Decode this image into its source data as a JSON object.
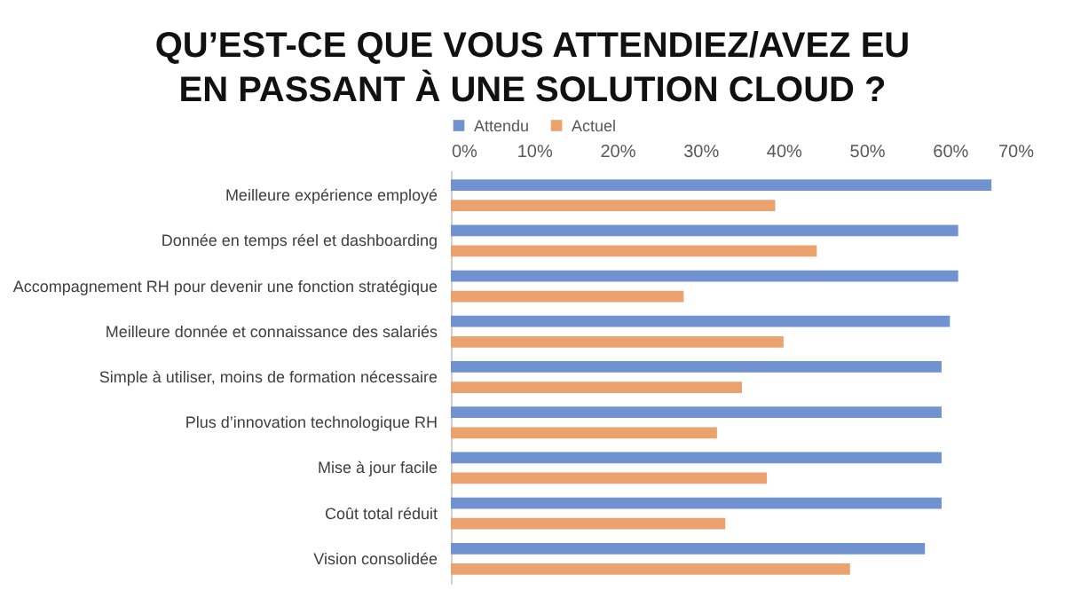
{
  "chart_data": {
    "type": "bar",
    "orientation": "horizontal",
    "title": "QU’EST-CE QUE VOUS ATTENDIEZ/AVEZ EU EN PASSANT À UNE SOLUTION CLOUD ?",
    "categories": [
      "Meilleure expérience employé",
      "Donnée en temps réel et dashboarding",
      "Accompagnement RH pour devenir une fonction stratégique",
      "Meilleure donnée et connaissance des salariés",
      "Simple à utiliser, moins de formation nécessaire",
      "Plus d’innovation technologique RH",
      "Mise à jour facile",
      "Coût total réduit",
      "Vision consolidée"
    ],
    "series": [
      {
        "name": "Attendu",
        "color": "#7092d0",
        "values": [
          65,
          61,
          61,
          60,
          59,
          59,
          59,
          59,
          57
        ]
      },
      {
        "name": "Actuel",
        "color": "#eba26e",
        "values": [
          39,
          44,
          28,
          40,
          35,
          32,
          38,
          33,
          48
        ]
      }
    ],
    "xlim": [
      0,
      70
    ],
    "xticks": [
      {
        "value": 0,
        "label": "0%"
      },
      {
        "value": 10,
        "label": "10%"
      },
      {
        "value": 20,
        "label": "20%"
      },
      {
        "value": 30,
        "label": "30%"
      },
      {
        "value": 40,
        "label": "40%"
      },
      {
        "value": 50,
        "label": "50%"
      },
      {
        "value": 60,
        "label": "60%"
      },
      {
        "value": 70,
        "label": "70%"
      }
    ],
    "grid": false,
    "legend": "top"
  }
}
